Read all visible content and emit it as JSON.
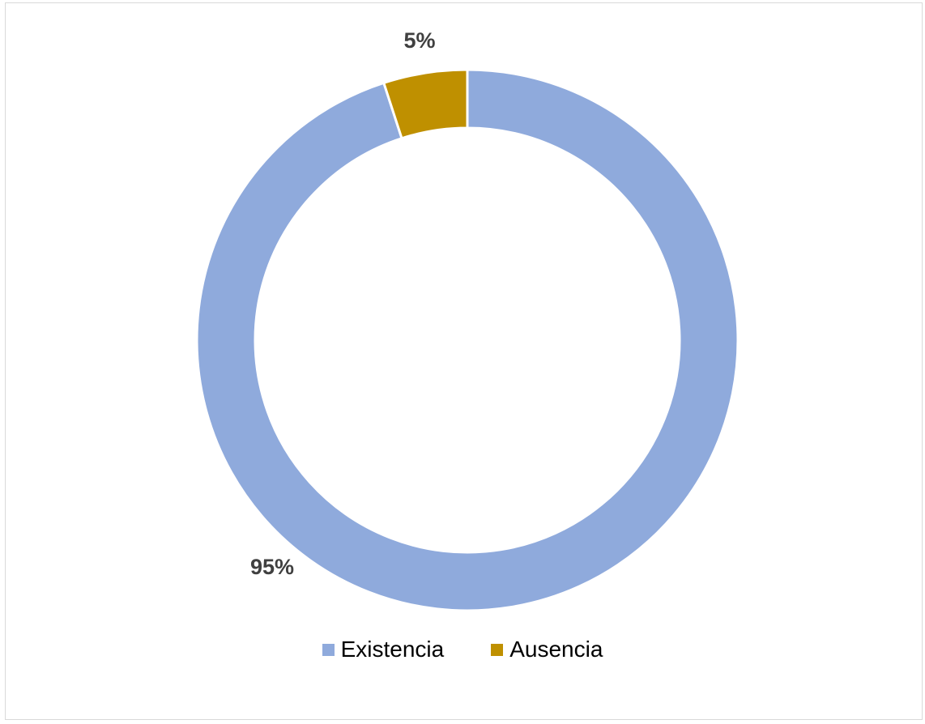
{
  "chart_data": {
    "type": "pie",
    "subtype": "doughnut",
    "categories": [
      "Existencia",
      "Ausencia"
    ],
    "values": [
      95,
      5
    ],
    "value_labels": [
      "95%",
      "5%"
    ],
    "colors": [
      "#8faadc",
      "#bf9000"
    ],
    "legend": {
      "position": "bottom",
      "entries": [
        "Existencia",
        "Ausencia"
      ]
    },
    "title": "",
    "xlabel": "",
    "ylabel": ""
  }
}
